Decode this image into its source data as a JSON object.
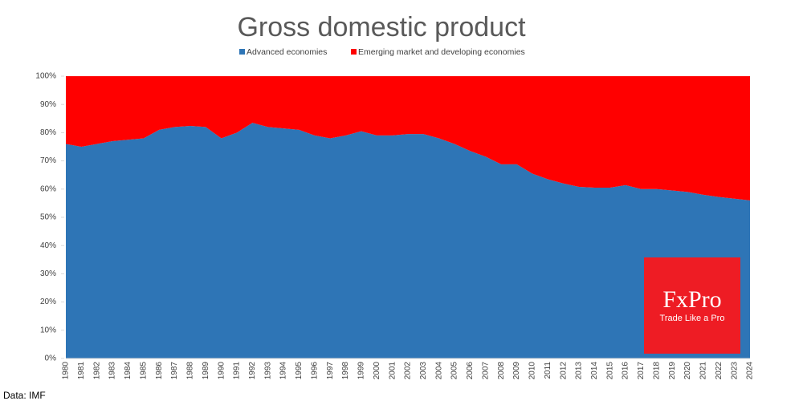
{
  "chart_data": {
    "type": "area",
    "title": "Gross domestic product",
    "categories": [
      "1980",
      "1981",
      "1982",
      "1983",
      "1984",
      "1985",
      "1986",
      "1987",
      "1988",
      "1989",
      "1990",
      "1991",
      "1992",
      "1993",
      "1994",
      "1995",
      "1996",
      "1997",
      "1998",
      "1999",
      "2000",
      "2001",
      "2002",
      "2003",
      "2004",
      "2005",
      "2006",
      "2007",
      "2008",
      "2009",
      "2010",
      "2011",
      "2012",
      "2013",
      "2014",
      "2015",
      "2016",
      "2017",
      "2018",
      "2019",
      "2020",
      "2021",
      "2022",
      "2023",
      "2024"
    ],
    "stacked": true,
    "series": [
      {
        "name": "Advanced economies",
        "color": "#2e75b6",
        "values": [
          76,
          75,
          76,
          77,
          77.5,
          78,
          81,
          82,
          82.4,
          82,
          78,
          80,
          83.5,
          82,
          81.5,
          81,
          79,
          78,
          79,
          80.5,
          79,
          79,
          79.5,
          79.5,
          78,
          76,
          73.5,
          71.5,
          68.8,
          68.8,
          65.5,
          63.5,
          62,
          60.8,
          60.5,
          60.5,
          61.4,
          60,
          60,
          59.5,
          59,
          58,
          57.2,
          56.6,
          56
        ]
      },
      {
        "name": "Emerging market and developing economies",
        "color": "#ff0000",
        "values": [
          24,
          25,
          24,
          23,
          22.5,
          22,
          19,
          18,
          17.6,
          18,
          22,
          20,
          16.5,
          18,
          18.5,
          19,
          21,
          22,
          21,
          19.5,
          21,
          21,
          20.5,
          20.5,
          22,
          24,
          26.5,
          28.5,
          31.2,
          31.2,
          34.5,
          36.5,
          38,
          39.2,
          39.5,
          39.5,
          38.6,
          40,
          40,
          40.5,
          41,
          42,
          42.8,
          43.4,
          44
        ]
      }
    ],
    "ylim": [
      0,
      100
    ],
    "yticks": [
      {
        "value": 0,
        "label": "0%"
      },
      {
        "value": 10,
        "label": "10%"
      },
      {
        "value": 20,
        "label": "20%"
      },
      {
        "value": 30,
        "label": "30%"
      },
      {
        "value": 40,
        "label": "40%"
      },
      {
        "value": 50,
        "label": "50%"
      },
      {
        "value": 60,
        "label": "60%"
      },
      {
        "value": 70,
        "label": "70%"
      },
      {
        "value": 80,
        "label": "80%"
      },
      {
        "value": 90,
        "label": "90%"
      },
      {
        "value": 100,
        "label": "100%"
      }
    ],
    "grid": false,
    "legend": "top",
    "source": "Data: IMF",
    "logo_name": "FxPro",
    "logo_tagline": "Trade Like a Pro"
  }
}
